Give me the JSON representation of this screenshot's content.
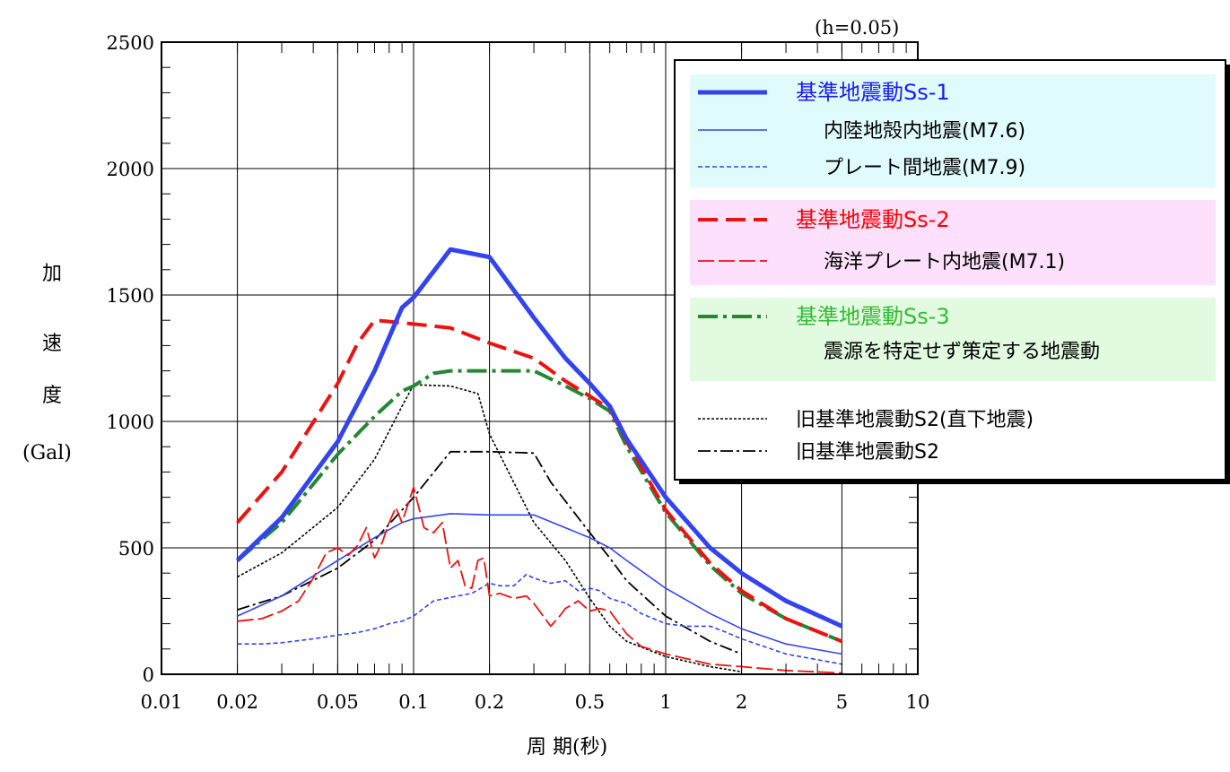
{
  "chart_data": {
    "type": "line",
    "x_scale": "log",
    "xlim": [
      0.01,
      10
    ],
    "ylim": [
      0,
      2500
    ],
    "grid": true,
    "annotation": "(h=0.05)",
    "ylabel_chars": [
      "加",
      "速",
      "度"
    ],
    "ylabel_unit": "(Gal)",
    "xlabel": "周 期(秒)",
    "x_ticks": [
      {
        "v": 0.01,
        "label": "0.01"
      },
      {
        "v": 0.02,
        "label": "0.02"
      },
      {
        "v": 0.05,
        "label": "0.05"
      },
      {
        "v": 0.1,
        "label": "0.1"
      },
      {
        "v": 0.2,
        "label": "0.2"
      },
      {
        "v": 0.5,
        "label": "0.5"
      },
      {
        "v": 1,
        "label": "1"
      },
      {
        "v": 2,
        "label": "2"
      },
      {
        "v": 5,
        "label": "5"
      },
      {
        "v": 10,
        "label": "10"
      }
    ],
    "y_ticks": [
      {
        "v": 0,
        "label": "0"
      },
      {
        "v": 500,
        "label": "500"
      },
      {
        "v": 1000,
        "label": "1000"
      },
      {
        "v": 1500,
        "label": "1500"
      },
      {
        "v": 2000,
        "label": "2000"
      },
      {
        "v": 2500,
        "label": "2500"
      }
    ],
    "legend_position": "top-right",
    "legend_groups": [
      {
        "bg": "#e0fbfc",
        "entries": [
          {
            "label": "基準地震動Ss-1",
            "text_color": "#1a1aff",
            "indent": false,
            "series": "ss1"
          },
          {
            "label": "内陸地殻内地震(M7.6)",
            "text_color": "#000000",
            "indent": true,
            "series": "inland"
          },
          {
            "label": "プレート間地震(M7.9)",
            "text_color": "#000000",
            "indent": true,
            "series": "interplate"
          }
        ]
      },
      {
        "bg": "#fde0fb",
        "entries": [
          {
            "label": "基準地震動Ss-2",
            "text_color": "#ff0000",
            "indent": false,
            "series": "ss2"
          },
          {
            "label": "海洋プレート内地震(M7.1)",
            "text_color": "#000000",
            "indent": true,
            "series": "intraslab"
          }
        ]
      },
      {
        "bg": "#e2fbe0",
        "entries": [
          {
            "label": "基準地震動Ss-3",
            "text_color": "#33bb33",
            "indent": false,
            "series": "ss3"
          },
          {
            "label": "震源を特定せず策定する地震動",
            "text_color": "#000000",
            "indent": true,
            "series": null
          }
        ]
      },
      {
        "bg": null,
        "entries": [
          {
            "label": "旧基準地震動S2(直下地震)",
            "text_color": "#000000",
            "indent": false,
            "series": "old_direct"
          },
          {
            "label": "旧基準地震動S2",
            "text_color": "#000000",
            "indent": false,
            "series": "old_s2"
          }
        ]
      }
    ],
    "series": [
      {
        "id": "ss1",
        "color": "#3344ee",
        "width": 5,
        "dash": "",
        "x": [
          0.02,
          0.03,
          0.05,
          0.07,
          0.09,
          0.1,
          0.14,
          0.2,
          0.3,
          0.4,
          0.5,
          0.6,
          0.7,
          1.0,
          1.5,
          2.0,
          3.0,
          5.0
        ],
        "y": [
          450,
          620,
          920,
          1200,
          1450,
          1490,
          1680,
          1650,
          1410,
          1250,
          1150,
          1060,
          930,
          700,
          500,
          400,
          290,
          190
        ]
      },
      {
        "id": "inland",
        "color": "#3344ee",
        "width": 1.6,
        "dash": "",
        "x": [
          0.02,
          0.03,
          0.05,
          0.07,
          0.09,
          0.1,
          0.14,
          0.2,
          0.3,
          0.5,
          0.6,
          0.7,
          1.0,
          1.5,
          2.0,
          3.0,
          5.0
        ],
        "y": [
          230,
          310,
          450,
          540,
          600,
          615,
          635,
          630,
          630,
          540,
          500,
          450,
          340,
          240,
          180,
          120,
          80
        ]
      },
      {
        "id": "interplate",
        "color": "#3344ee",
        "width": 1.6,
        "dash": "5,3",
        "x": [
          0.02,
          0.025,
          0.03,
          0.04,
          0.05,
          0.06,
          0.07,
          0.08,
          0.09,
          0.1,
          0.12,
          0.15,
          0.17,
          0.2,
          0.22,
          0.25,
          0.28,
          0.3,
          0.35,
          0.4,
          0.45,
          0.5,
          0.55,
          0.6,
          0.7,
          0.8,
          1.0,
          1.2,
          1.5,
          1.7,
          2.0,
          3.0,
          5.0
        ],
        "y": [
          120,
          120,
          125,
          140,
          155,
          165,
          180,
          200,
          210,
          230,
          290,
          310,
          320,
          360,
          350,
          350,
          395,
          380,
          360,
          370,
          330,
          340,
          330,
          300,
          280,
          240,
          200,
          190,
          190,
          170,
          140,
          80,
          40
        ]
      },
      {
        "id": "ss2",
        "color": "#ee1111",
        "width": 4,
        "dash": "22,9",
        "x": [
          0.02,
          0.03,
          0.05,
          0.06,
          0.07,
          0.08,
          0.1,
          0.14,
          0.2,
          0.3,
          0.4,
          0.5,
          0.6,
          0.7,
          1.0,
          1.5,
          2.0,
          3.0,
          5.0
        ],
        "y": [
          600,
          800,
          1150,
          1310,
          1400,
          1395,
          1385,
          1370,
          1310,
          1250,
          1160,
          1100,
          1050,
          920,
          650,
          440,
          330,
          220,
          130
        ]
      },
      {
        "id": "intraslab",
        "color": "#ee1111",
        "width": 1.8,
        "dash": "18,5",
        "x": [
          0.02,
          0.025,
          0.03,
          0.035,
          0.04,
          0.045,
          0.05,
          0.055,
          0.06,
          0.065,
          0.07,
          0.075,
          0.08,
          0.085,
          0.09,
          0.1,
          0.11,
          0.12,
          0.13,
          0.14,
          0.15,
          0.16,
          0.17,
          0.18,
          0.19,
          0.2,
          0.22,
          0.25,
          0.28,
          0.3,
          0.35,
          0.38,
          0.4,
          0.45,
          0.5,
          0.55,
          0.6,
          0.7,
          0.8,
          1.0,
          1.5,
          2.0,
          3.0,
          5.0
        ],
        "y": [
          210,
          220,
          250,
          290,
          380,
          480,
          500,
          470,
          510,
          580,
          460,
          520,
          600,
          660,
          600,
          740,
          580,
          560,
          600,
          420,
          450,
          350,
          340,
          450,
          460,
          310,
          320,
          300,
          310,
          280,
          190,
          230,
          260,
          290,
          250,
          260,
          250,
          160,
          110,
          80,
          40,
          30,
          15,
          5
        ]
      },
      {
        "id": "ss3",
        "color": "#228833",
        "width": 4,
        "dash": "22,6,4,6",
        "x": [
          0.02,
          0.03,
          0.05,
          0.07,
          0.09,
          0.1,
          0.12,
          0.14,
          0.2,
          0.3,
          0.4,
          0.5,
          0.6,
          0.7,
          1.0,
          1.5,
          2.0,
          3.0,
          5.0
        ],
        "y": [
          450,
          600,
          870,
          1020,
          1120,
          1140,
          1190,
          1200,
          1200,
          1200,
          1140,
          1090,
          1040,
          900,
          640,
          430,
          320,
          220,
          130
        ]
      },
      {
        "id": "old_direct",
        "color": "#000000",
        "width": 1.6,
        "dash": "3,2",
        "x": [
          0.02,
          0.03,
          0.05,
          0.07,
          0.09,
          0.1,
          0.14,
          0.18,
          0.2,
          0.3,
          0.4,
          0.5,
          0.6,
          0.7,
          1.0,
          1.5,
          2.0
        ],
        "y": [
          385,
          480,
          660,
          850,
          1060,
          1145,
          1140,
          1110,
          950,
          600,
          450,
          300,
          190,
          130,
          70,
          30,
          10
        ]
      },
      {
        "id": "old_s2",
        "color": "#000000",
        "width": 1.8,
        "dash": "14,4,3,4",
        "x": [
          0.02,
          0.03,
          0.05,
          0.07,
          0.1,
          0.14,
          0.2,
          0.3,
          0.35,
          0.5,
          0.6,
          0.7,
          1.0,
          1.5,
          2.0
        ],
        "y": [
          255,
          310,
          420,
          530,
          700,
          880,
          880,
          875,
          760,
          560,
          460,
          370,
          230,
          130,
          80
        ]
      }
    ]
  }
}
